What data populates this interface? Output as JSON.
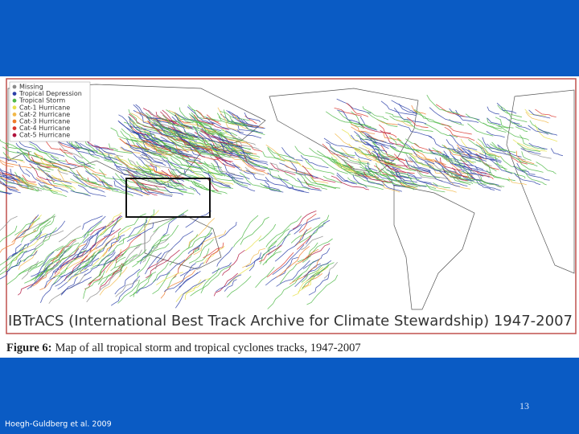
{
  "slide": {
    "legend": [
      {
        "name": "Missing",
        "color": "#8c8c8c"
      },
      {
        "name": "Tropical Depression",
        "color": "#2b3fa8"
      },
      {
        "name": "Tropical Storm",
        "color": "#4fb848"
      },
      {
        "name": "Cat-1 Hurricane",
        "color": "#e8e04a"
      },
      {
        "name": "Cat-2 Hurricane",
        "color": "#f2b84a"
      },
      {
        "name": "Cat-3 Hurricane",
        "color": "#ef7c2a"
      },
      {
        "name": "Cat-4 Hurricane",
        "color": "#d9342a"
      },
      {
        "name": "Cat-5 Hurricane",
        "color": "#b0123c"
      }
    ],
    "banner": "IBTrACS (International Best Track Archive for Climate Stewardship) 1947-2007",
    "caption_label": "Figure 6:",
    "caption_text": "Map of all tropical storm and tropical cyclones tracks, 1947-2007",
    "page_number": "13",
    "citation": "Hoegh-Guldberg et al. 2009"
  }
}
